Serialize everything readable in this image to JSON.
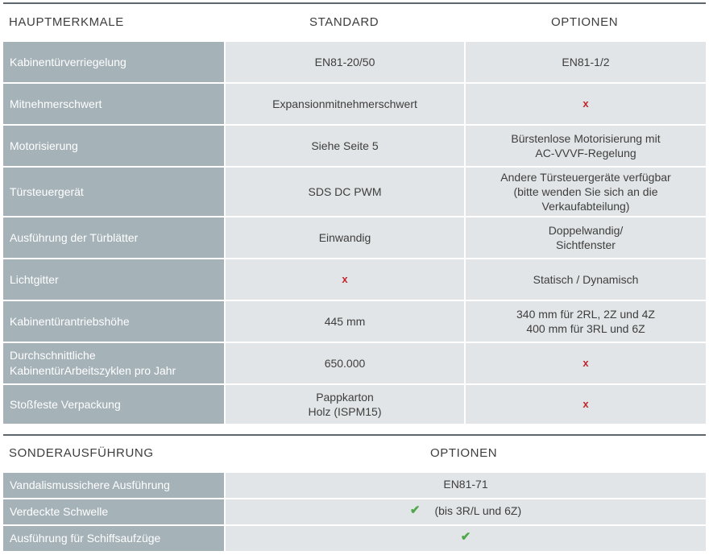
{
  "table1": {
    "headers": [
      "HAUPTMERKMALE",
      "STANDARD",
      "OPTIONEN"
    ],
    "rows": [
      {
        "feature": "Kabinentürverriegelung",
        "standard": "EN81-20/50",
        "option": "EN81-1/2"
      },
      {
        "feature": "Mitnehmerschwert",
        "standard": "Expansionmitnehmerschwert",
        "option": "x"
      },
      {
        "feature": "Motorisierung",
        "standard": "Siehe Seite 5",
        "option": "Bürstenlose Motorisierung mit\nAC-VVVF-Regelung"
      },
      {
        "feature": "Türsteuergerät",
        "standard": "SDS DC PWM",
        "option": "Andere Türsteuergeräte verfügbar\n (bitte wenden Sie sich an die\nVerkaufabteilung)"
      },
      {
        "feature": "Ausführung der Türblätter",
        "standard": "Einwandig",
        "option": "Doppelwandig/\nSichtfenster"
      },
      {
        "feature": "Lichtgitter",
        "standard": "x",
        "option": "Statisch / Dynamisch"
      },
      {
        "feature": "Kabinentürantriebshöhe",
        "standard": "445 mm",
        "option": "340 mm für 2RL, 2Z und 4Z\n400 mm für 3RL und 6Z"
      },
      {
        "feature": "Durchschnittliche\nKabinentürArbeitszyklen pro Jahr",
        "standard": "650.000",
        "option": "x"
      },
      {
        "feature": "Stoßfeste Verpackung",
        "standard": "Pappkarton\nHolz (ISPM15)",
        "option": "x"
      }
    ]
  },
  "table2": {
    "headers": [
      "SONDERAUSFÜHRUNG",
      "OPTIONEN"
    ],
    "rows": [
      {
        "feature": "Vandalismussichere Ausführung",
        "option": "EN81-71",
        "check": ""
      },
      {
        "feature": "Verdeckte Schwelle",
        "option": "(bis 3R/L und 6Z)",
        "check": "✔"
      },
      {
        "feature": "Ausführung für Schiffsaufzüge",
        "option": "",
        "check": "✔"
      }
    ]
  },
  "colors": {
    "feature_bg": "#a5b2b8",
    "cell_bg": "#e2e5e7",
    "x_mark": "#c0262d",
    "check_mark": "#4ea84a"
  }
}
